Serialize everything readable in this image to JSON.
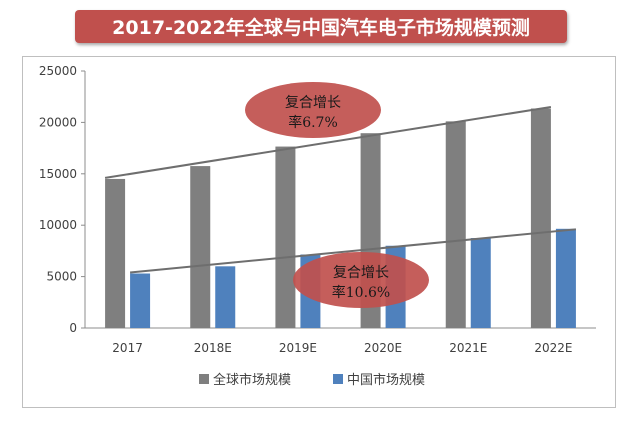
{
  "title": "2017-2022年全球与中国汽车电子市场规模预测",
  "chart_data": {
    "type": "bar",
    "categories": [
      "2017",
      "2018E",
      "2019E",
      "2020E",
      "2021E",
      "2022E"
    ],
    "series": [
      {
        "name": "全球市场规模",
        "color": "#7f7f7f",
        "values": [
          14500,
          15750,
          17650,
          18950,
          20100,
          21350
        ]
      },
      {
        "name": "中国市场规模",
        "color": "#4f81bd",
        "values": [
          5300,
          6000,
          7150,
          8000,
          8750,
          9650
        ]
      }
    ],
    "ylim": [
      0,
      25000
    ],
    "yticks": [
      0,
      5000,
      10000,
      15000,
      20000,
      25000
    ],
    "gridlines": false,
    "legend_position": "bottom",
    "trendlines": [
      {
        "series": "全球市场规模",
        "start": 14600,
        "end": 21500
      },
      {
        "series": "中国市场规模",
        "start": 5400,
        "end": 9600
      }
    ],
    "annotations": [
      {
        "series": "全球市场规模",
        "line1": "复合增长",
        "line2": "率6.7%",
        "color": "#c0504d"
      },
      {
        "series": "中国市场规模",
        "line1": "复合增长",
        "line2": "率10.6%",
        "color": "#c0504d"
      }
    ]
  }
}
